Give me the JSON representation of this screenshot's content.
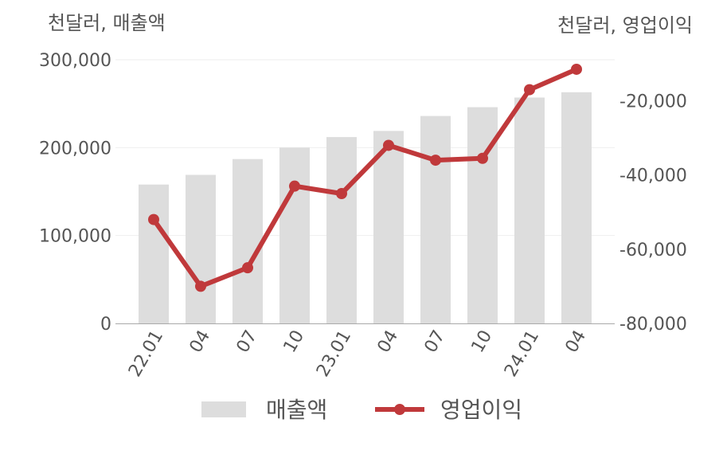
{
  "chart_data": {
    "type": "bar+line",
    "categories": [
      "22.01",
      "04",
      "07",
      "10",
      "23.01",
      "04",
      "07",
      "10",
      "24.01",
      "04"
    ],
    "series": [
      {
        "name": "매출액",
        "type": "bar",
        "axis": "left",
        "color": "#dddddd",
        "values": [
          158000,
          169000,
          187000,
          200000,
          212000,
          219000,
          236000,
          246000,
          257000,
          263000
        ]
      },
      {
        "name": "영업이익",
        "type": "line",
        "axis": "right",
        "color": "#c0393b",
        "values": [
          -52000,
          -70000,
          -65000,
          -43000,
          -45000,
          -32000,
          -36000,
          -35500,
          -17000,
          -11500
        ]
      }
    ],
    "left_axis": {
      "unit_label": "천달러, 매출액",
      "ylim": [
        0,
        300000
      ],
      "ticks": [
        "0",
        "100,000",
        "200,000",
        "300,000"
      ],
      "tick_values": [
        0,
        100000,
        200000,
        300000
      ]
    },
    "right_axis": {
      "unit_label": "천달러, 영업이익",
      "ylim": [
        -80000,
        -10000
      ],
      "ticks": [
        "-80,000",
        "-60,000",
        "-40,000",
        "-20,000"
      ],
      "tick_values": [
        -80000,
        -60000,
        -40000,
        -20000
      ]
    },
    "legend": {
      "position": "bottom",
      "items": [
        "매출액",
        "영업이익"
      ]
    },
    "grid": true
  }
}
